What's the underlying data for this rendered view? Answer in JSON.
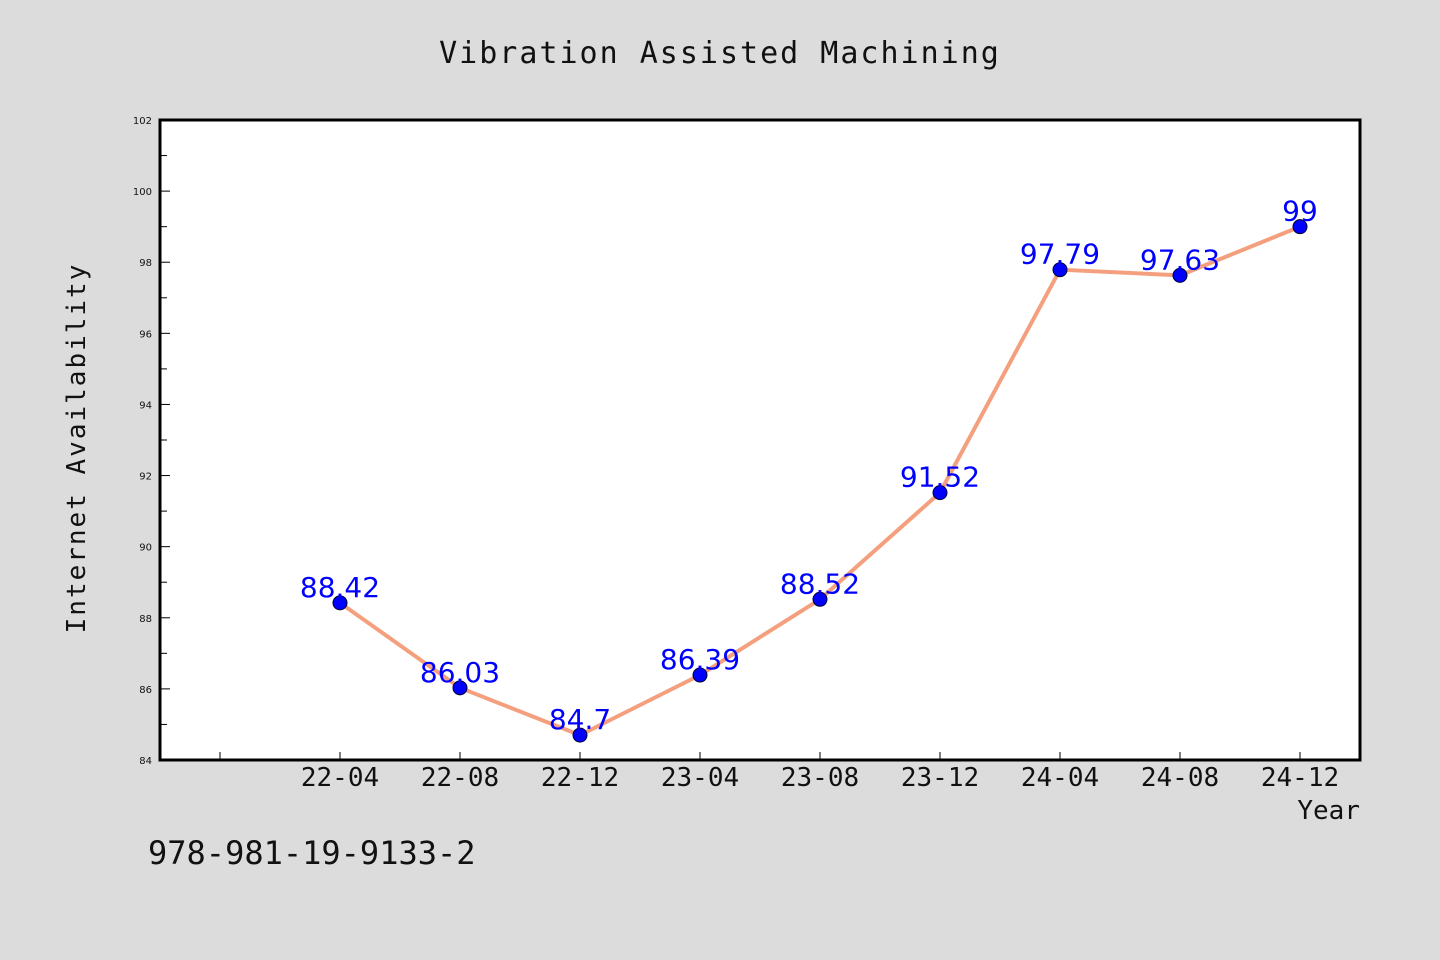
{
  "chart_data": {
    "type": "line",
    "title": "Vibration Assisted Machining",
    "xlabel": "Year",
    "ylabel": "Internet Availability",
    "categories": [
      "22-04",
      "22-08",
      "22-12",
      "23-04",
      "23-08",
      "23-12",
      "24-04",
      "24-08",
      "24-12"
    ],
    "series": [
      {
        "values": [
          88.42,
          86.03,
          84.7,
          86.39,
          88.52,
          91.52,
          97.79,
          97.63,
          99
        ]
      }
    ],
    "data_labels": [
      "88.42",
      "86.03",
      "84.7",
      "86.39",
      "88.52",
      "91.52",
      "97.79",
      "97.63",
      "99"
    ],
    "ylim": [
      84,
      102
    ],
    "yticks": [
      "84",
      "86",
      "88",
      "90",
      "92",
      "94",
      "96",
      "98",
      "100",
      "102"
    ],
    "grid": false,
    "legend": "none",
    "colors": {
      "background": "#dcdcdc",
      "plot_area": "#ffffff",
      "line": "#f4a07e",
      "marker": "#0000ff",
      "data_label": "#0000ff",
      "text": "#111111"
    }
  },
  "footer": {
    "isbn": "978-981-19-9133-2"
  }
}
